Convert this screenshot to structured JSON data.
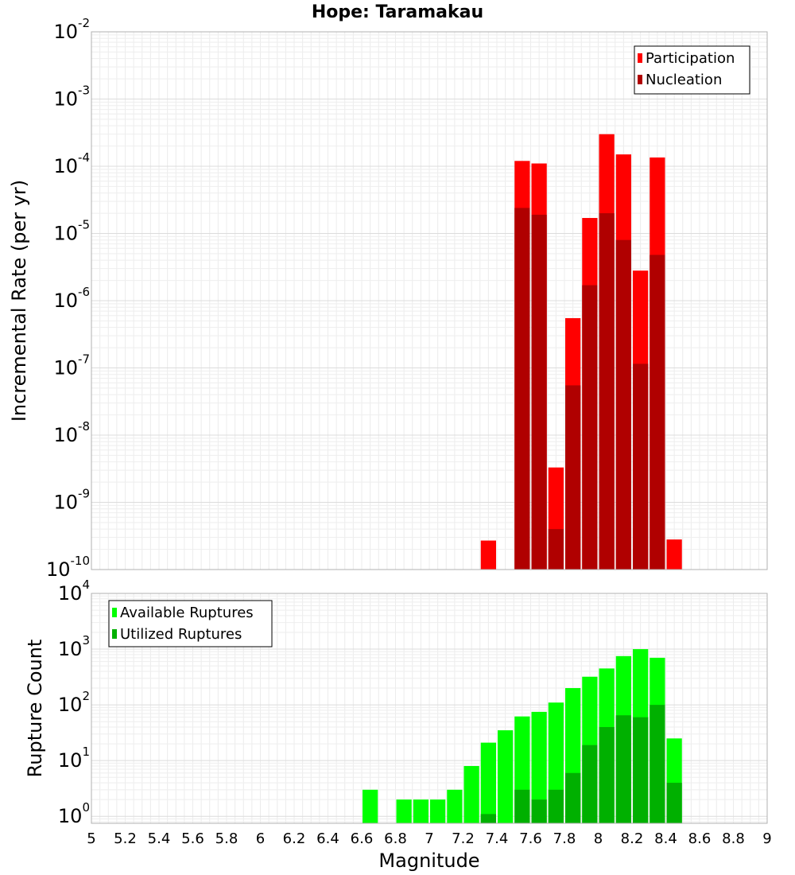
{
  "chart_data": [
    {
      "type": "bar",
      "title": "Hope: Taramakau",
      "xlabel": "",
      "ylabel": "Incremental Rate (per yr)",
      "yscale": "log",
      "xlim": [
        5,
        9
      ],
      "ylim": [
        1e-10,
        0.01
      ],
      "grid": true,
      "legend_position": "top-right",
      "bin_width": 0.1,
      "y_ticks": [
        {
          "base": "10",
          "exp": "-10"
        },
        {
          "base": "10",
          "exp": "-9"
        },
        {
          "base": "10",
          "exp": "-8"
        },
        {
          "base": "10",
          "exp": "-7"
        },
        {
          "base": "10",
          "exp": "-6"
        },
        {
          "base": "10",
          "exp": "-5"
        },
        {
          "base": "10",
          "exp": "-4"
        },
        {
          "base": "10",
          "exp": "-3"
        },
        {
          "base": "10",
          "exp": "-2"
        }
      ],
      "x": [
        7.35,
        7.55,
        7.65,
        7.75,
        7.85,
        7.95,
        8.05,
        8.15,
        8.25,
        8.35,
        8.45
      ],
      "series": [
        {
          "name": "Participation",
          "color": "#ff0000",
          "values": [
            2.7e-10,
            0.00012,
            0.00011,
            3.3e-09,
            5.5e-07,
            1.7e-05,
            0.0003,
            0.00015,
            2.8e-06,
            0.000135,
            2.8e-10
          ]
        },
        {
          "name": "Nucleation",
          "color": "#b00000",
          "values": [
            null,
            2.4e-05,
            1.9e-05,
            4e-10,
            5.5e-08,
            1.7e-06,
            2e-05,
            8e-06,
            1.15e-07,
            4.8e-06,
            null
          ]
        }
      ]
    },
    {
      "type": "bar",
      "title": "",
      "xlabel": "Magnitude",
      "ylabel": "Rupture Count",
      "yscale": "log",
      "xlim": [
        5,
        9
      ],
      "ylim": [
        0.75,
        10000
      ],
      "grid": true,
      "legend_position": "top-left",
      "bin_width": 0.1,
      "x_ticks": [
        "5",
        "5.2",
        "5.4",
        "5.6",
        "5.8",
        "6",
        "6.2",
        "6.4",
        "6.6",
        "6.8",
        "7",
        "7.2",
        "7.4",
        "7.6",
        "7.8",
        "8",
        "8.2",
        "8.4",
        "8.6",
        "8.8",
        "9"
      ],
      "y_ticks": [
        {
          "base": "10",
          "exp": "0"
        },
        {
          "base": "10",
          "exp": "1"
        },
        {
          "base": "10",
          "exp": "2"
        },
        {
          "base": "10",
          "exp": "3"
        },
        {
          "base": "10",
          "exp": "4"
        }
      ],
      "x": [
        6.65,
        6.85,
        6.95,
        7.05,
        7.15,
        7.25,
        7.35,
        7.45,
        7.55,
        7.65,
        7.75,
        7.85,
        7.95,
        8.05,
        8.15,
        8.25,
        8.35,
        8.45
      ],
      "series": [
        {
          "name": "Available Ruptures",
          "color": "#00ff00",
          "values": [
            3,
            2,
            2,
            2,
            3,
            8,
            21,
            35,
            62,
            75,
            110,
            200,
            320,
            450,
            750,
            1000,
            700,
            25
          ]
        },
        {
          "name": "Utilized Ruptures",
          "color": "#00b000",
          "values": [
            null,
            null,
            null,
            null,
            null,
            null,
            1.1,
            null,
            3,
            2,
            3,
            6,
            19,
            40,
            65,
            60,
            100,
            4
          ]
        }
      ]
    }
  ]
}
